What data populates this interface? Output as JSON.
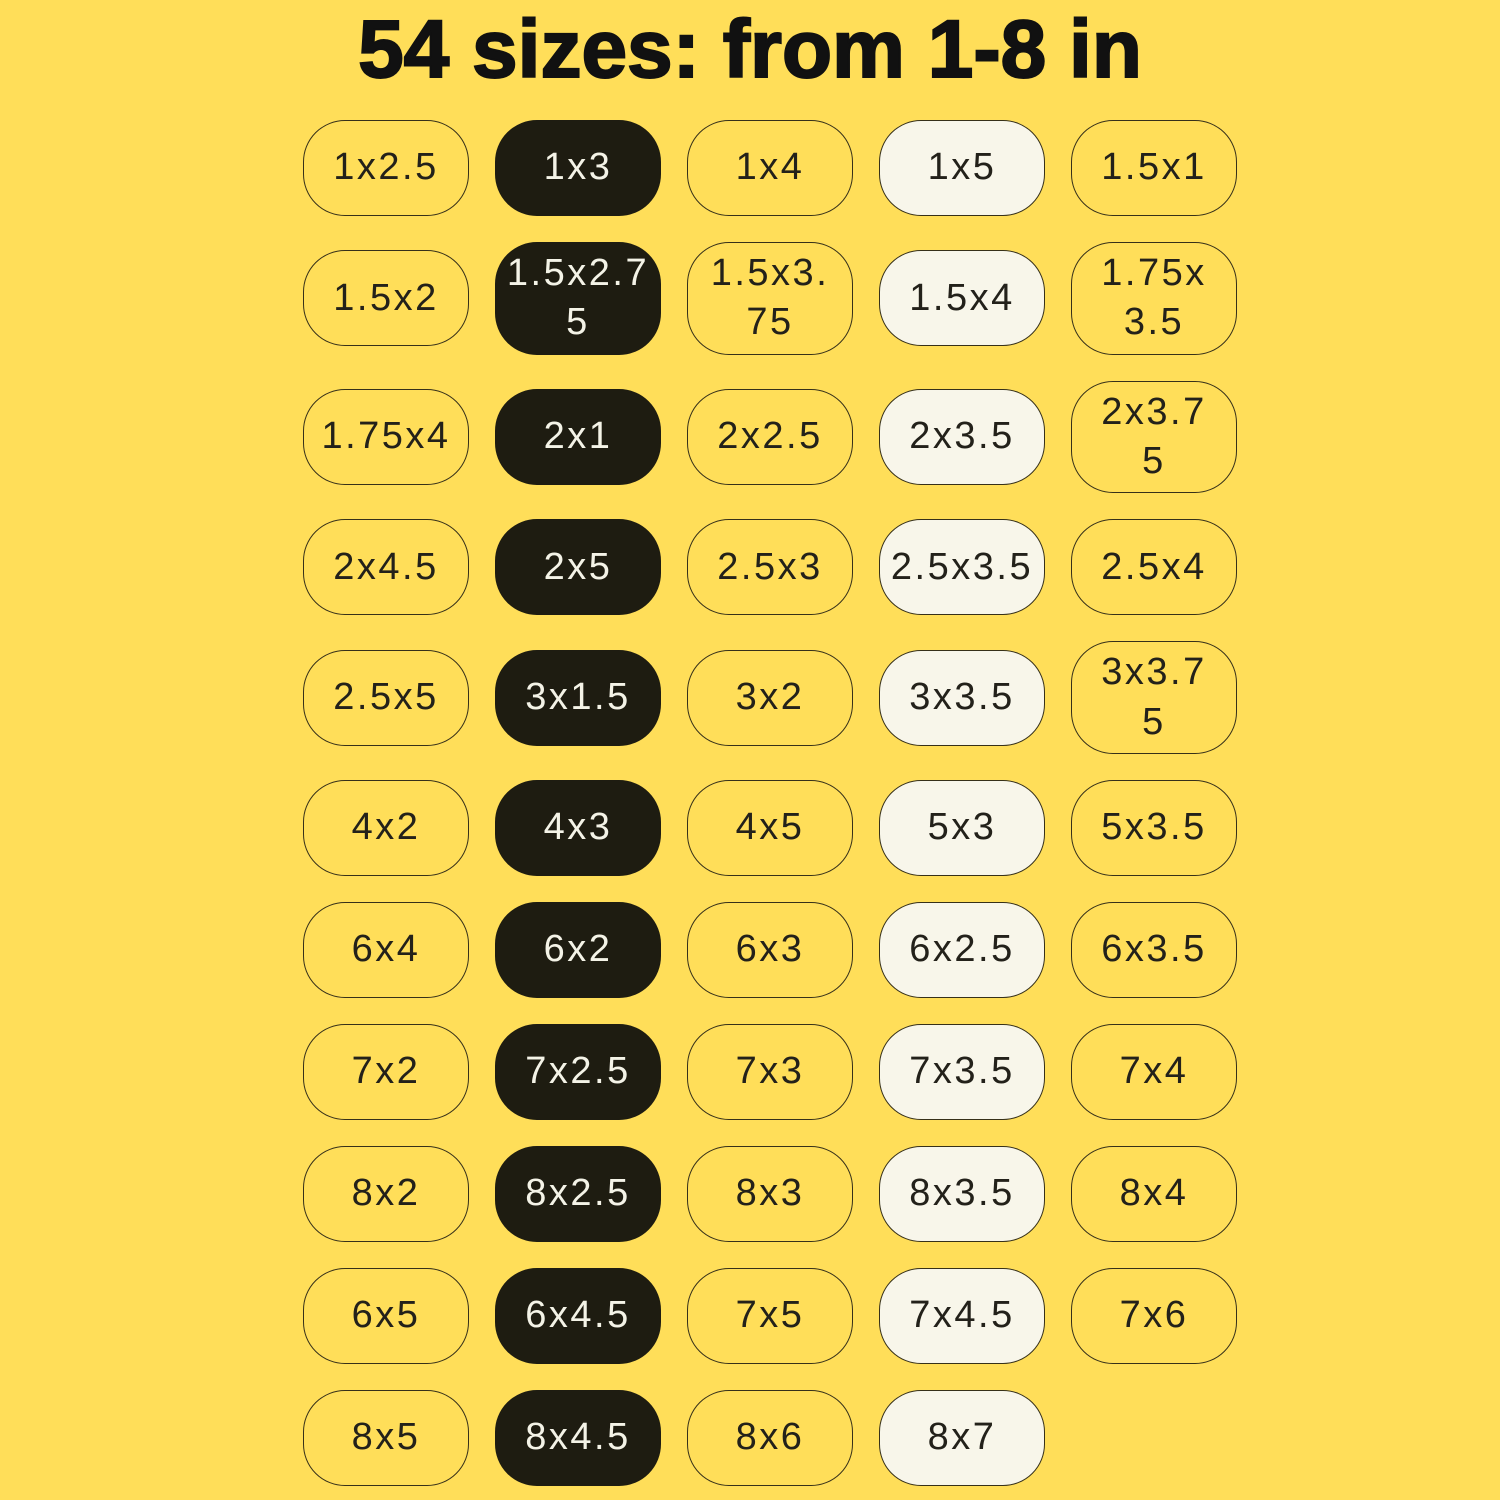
{
  "title": "54 sizes: from 1-8 in",
  "colors": {
    "background": "#FFDE59",
    "title_ink": "#111111",
    "label_ink": "#23211a",
    "outline_border": "#363019",
    "pill_black": "#1e1c11",
    "pill_black_text": "#f4f3e7",
    "pill_cream": "#f8f6ea"
  },
  "sizes": {
    "count": 54,
    "unit": "in",
    "rows": [
      [
        {
          "size": "1x2.5",
          "variant": "outline"
        },
        {
          "size": "1x3",
          "variant": "black"
        },
        {
          "size": "1x4",
          "variant": "outline"
        },
        {
          "size": "1x5",
          "variant": "cream"
        },
        {
          "size": "1.5x1",
          "variant": "outline"
        }
      ],
      [
        {
          "size": "1.5x2",
          "variant": "outline"
        },
        {
          "size": "1.5x2.75",
          "display": "1.5x2.7\n5",
          "variant": "black"
        },
        {
          "size": "1.5x3.75",
          "display": "1.5x3.\n75",
          "variant": "outline"
        },
        {
          "size": "1.5x4",
          "variant": "cream"
        },
        {
          "size": "1.75x3.5",
          "display": "1.75x\n3.5",
          "variant": "outline"
        }
      ],
      [
        {
          "size": "1.75x4",
          "variant": "outline"
        },
        {
          "size": "2x1",
          "variant": "black"
        },
        {
          "size": "2x2.5",
          "variant": "outline"
        },
        {
          "size": "2x3.5",
          "variant": "cream"
        },
        {
          "size": "2x3.75",
          "display": "2x3.7\n5",
          "variant": "outline"
        }
      ],
      [
        {
          "size": "2x4.5",
          "variant": "outline"
        },
        {
          "size": "2x5",
          "variant": "black"
        },
        {
          "size": "2.5x3",
          "variant": "outline"
        },
        {
          "size": "2.5x3.5",
          "variant": "cream"
        },
        {
          "size": "2.5x4",
          "variant": "outline"
        }
      ],
      [
        {
          "size": "2.5x5",
          "variant": "outline"
        },
        {
          "size": "3x1.5",
          "variant": "black"
        },
        {
          "size": "3x2",
          "variant": "outline"
        },
        {
          "size": "3x3.5",
          "variant": "cream"
        },
        {
          "size": "3x3.75",
          "display": "3x3.7\n5",
          "variant": "outline"
        }
      ],
      [
        {
          "size": "4x2",
          "variant": "outline"
        },
        {
          "size": "4x3",
          "variant": "black"
        },
        {
          "size": "4x5",
          "variant": "outline"
        },
        {
          "size": "5x3",
          "variant": "cream"
        },
        {
          "size": "5x3.5",
          "variant": "outline"
        }
      ],
      [
        {
          "size": "6x4",
          "variant": "outline"
        },
        {
          "size": "6x2",
          "variant": "black"
        },
        {
          "size": "6x3",
          "variant": "outline"
        },
        {
          "size": "6x2.5",
          "variant": "cream"
        },
        {
          "size": "6x3.5",
          "variant": "outline"
        }
      ],
      [
        {
          "size": "7x2",
          "variant": "outline"
        },
        {
          "size": "7x2.5",
          "variant": "black"
        },
        {
          "size": "7x3",
          "variant": "outline"
        },
        {
          "size": "7x3.5",
          "variant": "cream"
        },
        {
          "size": "7x4",
          "variant": "outline"
        }
      ],
      [
        {
          "size": "8x2",
          "variant": "outline"
        },
        {
          "size": "8x2.5",
          "variant": "black"
        },
        {
          "size": "8x3",
          "variant": "outline"
        },
        {
          "size": "8x3.5",
          "variant": "cream"
        },
        {
          "size": "8x4",
          "variant": "outline"
        }
      ],
      [
        {
          "size": "6x5",
          "variant": "outline"
        },
        {
          "size": "6x4.5",
          "variant": "black"
        },
        {
          "size": "7x5",
          "variant": "outline"
        },
        {
          "size": "7x4.5",
          "variant": "cream"
        },
        {
          "size": "7x6",
          "variant": "outline"
        }
      ],
      [
        {
          "size": "8x5",
          "variant": "outline"
        },
        {
          "size": "8x4.5",
          "variant": "black"
        },
        {
          "size": "8x6",
          "variant": "outline"
        },
        {
          "size": "8x7",
          "variant": "cream"
        }
      ]
    ]
  }
}
